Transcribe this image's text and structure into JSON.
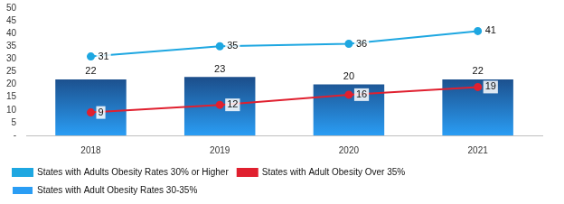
{
  "chart_data": {
    "type": "bar",
    "categories": [
      "2018",
      "2019",
      "2020",
      "2021"
    ],
    "ylim": [
      0,
      50
    ],
    "yticks": [
      {
        "value": 0,
        "label": "-"
      },
      5,
      10,
      15,
      20,
      25,
      30,
      35,
      40,
      45,
      50
    ],
    "grid": false,
    "legend": "bottom",
    "data_labels": true,
    "series": [
      {
        "name": "States with Adult Obesity Rates 30-35%",
        "type": "bar",
        "color": "#1f3864",
        "values": [
          22,
          23,
          20,
          22
        ]
      },
      {
        "name": "States with Adults Obesity Rates 30% or Higher",
        "type": "line",
        "color": "#1ea7e1",
        "marker": "circle",
        "values": [
          31,
          35,
          36,
          41
        ]
      },
      {
        "name": "States with Adult Obesity Over 35%",
        "type": "line",
        "color": "#e0202f",
        "marker": "circle",
        "values": [
          9,
          12,
          16,
          19
        ]
      }
    ]
  }
}
